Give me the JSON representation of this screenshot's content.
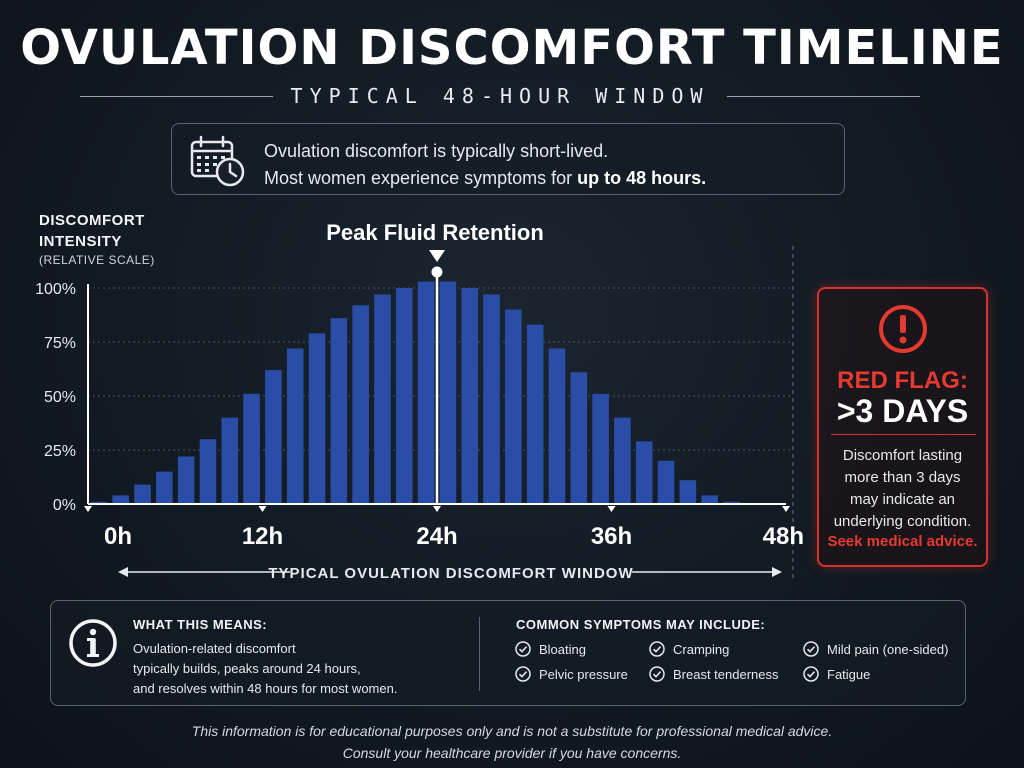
{
  "header": {
    "title": "OVULATION DISCOMFORT TIMELINE",
    "subtitle": "TYPICAL 48-HOUR WINDOW"
  },
  "intro": {
    "icon": "calendar-clock-icon",
    "line1": "Ovulation discomfort is typically short-lived.",
    "line2_prefix": "Most women experience symptoms for ",
    "line2_bold": "up to 48 hours."
  },
  "chart_data": {
    "type": "bar",
    "ylabel_line1": "DISCOMFORT",
    "ylabel_line2": "INTENSITY",
    "ylabel_sub": "(RELATIVE SCALE)",
    "ylim": [
      0,
      100
    ],
    "y_ticks": [
      "0%",
      "25%",
      "50%",
      "75%",
      "100%"
    ],
    "y_tick_values": [
      0,
      25,
      50,
      75,
      100
    ],
    "xlim": [
      0,
      48
    ],
    "x_ticks": [
      "0h",
      "12h",
      "24h",
      "36h",
      "48h"
    ],
    "x_tick_values": [
      0,
      12,
      24,
      36,
      48
    ],
    "grid": true,
    "bar_color": "#2a4ea8",
    "x": [
      0.75,
      2.25,
      3.75,
      5.25,
      6.75,
      8.25,
      9.75,
      11.25,
      12.75,
      14.25,
      15.75,
      17.25,
      18.75,
      20.25,
      21.75,
      23.25,
      24.75,
      26.25,
      27.75,
      29.25,
      30.75,
      32.25,
      33.75,
      35.25,
      36.75,
      38.25,
      39.75,
      41.25,
      42.75,
      44.25,
      45.75,
      47.25
    ],
    "values": [
      1,
      4,
      9,
      15,
      22,
      30,
      40,
      51,
      62,
      72,
      79,
      86,
      92,
      97,
      100,
      103,
      103,
      100,
      97,
      90,
      83,
      72,
      61,
      51,
      40,
      29,
      20,
      11,
      4,
      1,
      0,
      0
    ],
    "peak_label": "Peak Fluid Retention",
    "peak_x": 24,
    "window_label": "TYPICAL OVULATION DISCOMFORT WINDOW"
  },
  "red_flag": {
    "icon": "alert-circle-icon",
    "label": "RED FLAG:",
    "threshold": ">3 DAYS",
    "text_line1": "Discomfort lasting",
    "text_line2": "more than 3 days",
    "text_line3": "may indicate an",
    "text_line4": "underlying condition.",
    "cta": "Seek medical advice.",
    "color": "#e53a30"
  },
  "info": {
    "icon": "info-circle-icon",
    "heading": "WHAT THIS MEANS:",
    "line1": "Ovulation-related discomfort",
    "line2": "typically builds, peaks around 24 hours,",
    "line3": "and resolves within 48 hours for most women.",
    "symptoms_heading": "COMMON SYMPTOMS MAY INCLUDE:",
    "symptoms": [
      "Bloating",
      "Cramping",
      "Mild pain (one-sided)",
      "Pelvic pressure",
      "Breast tenderness",
      "Fatigue"
    ]
  },
  "footer": {
    "line1": "This information is for educational purposes only and is not a substitute for professional medical advice.",
    "line2": "Consult your healthcare provider if you have concerns."
  }
}
